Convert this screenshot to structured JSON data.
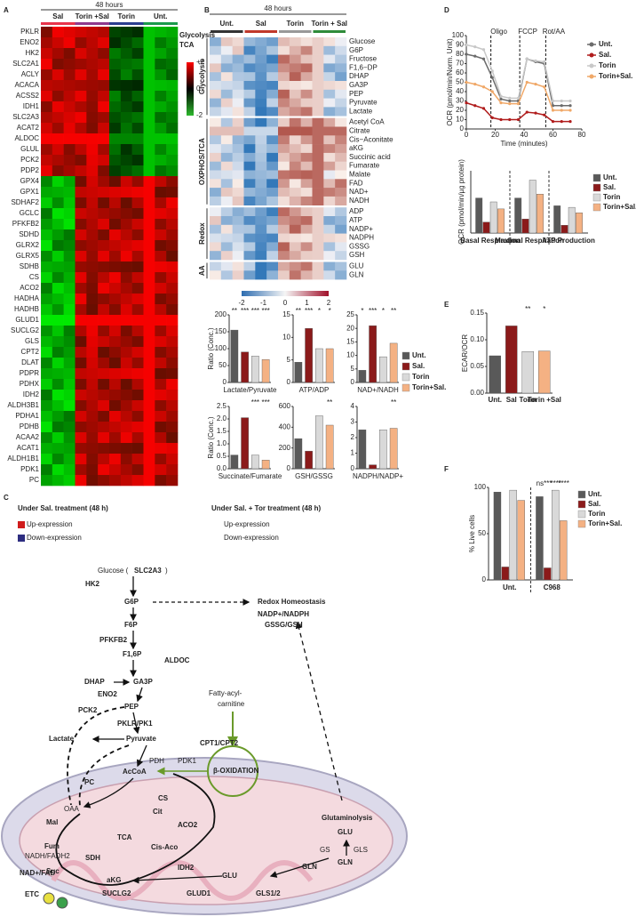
{
  "panel_labels": [
    "A",
    "B",
    "C",
    "D",
    "E",
    "F"
  ],
  "heatmap_a": {
    "header": "48 hours",
    "columns": [
      "Sal",
      "Torin +Sal",
      "Torin",
      "Unt."
    ],
    "column_colors": [
      "#e8334a",
      "#8e3a8e",
      "#2b3d8f",
      "#1a9a4a"
    ],
    "genes": [
      "PKLR",
      "ENO2",
      "HK2",
      "SLC2A1",
      "ACLY",
      "ACACA",
      "ACSS2",
      "IDH1",
      "SLC2A3",
      "ACAT2",
      "ALDOC",
      "GLUL",
      "PCK2",
      "PDP2",
      "GPX4",
      "GPX1",
      "SDHAF2",
      "GCLC",
      "PFKFB2",
      "SDHD",
      "GLRX2",
      "GLRX5",
      "SDHB",
      "CS",
      "ACO2",
      "HADHA",
      "HADHB",
      "GLUD1",
      "SUCLG2",
      "GLS",
      "CPT2",
      "DLAT",
      "PDPR",
      "PDHX",
      "IDH2",
      "ALDH3B1",
      "PDHA1",
      "PDHB",
      "ACAA2",
      "ACAT1",
      "ALDH1B1",
      "PDK1",
      "PC"
    ],
    "gene_colors": [
      "#2323c8",
      "#2323c8",
      "#2323c8",
      "#cc33cc",
      "#111",
      "#111",
      "#111",
      "#cc33cc",
      "#2323c8",
      "#111",
      "#2323c8",
      "#111",
      "#cc33cc",
      "#cc33cc",
      "#111",
      "#111",
      "#cc33cc",
      "#111",
      "#2323c8",
      "#cc33cc",
      "#111",
      "#111",
      "#cc33cc",
      "#cc33cc",
      "#cc33cc",
      "#cc33cc",
      "#cc33cc",
      "#cc33cc",
      "#cc33cc",
      "#cc33cc",
      "#cc33cc",
      "#111",
      "#cc33cc",
      "#cc33cc",
      "#cc33cc",
      "#111",
      "#cc33cc",
      "#cc33cc",
      "#cc33cc",
      "#cc33cc",
      "#111",
      "#cc33cc",
      "#cc33cc"
    ],
    "legend": [
      {
        "label": "Glycolysis",
        "color": "#2323c8"
      },
      {
        "label": "TCA",
        "color": "#cc33cc"
      }
    ],
    "scale_ticks": [
      {
        "value": 2,
        "label": "+2"
      },
      0,
      -2
    ]
  },
  "heatmap_b": {
    "header": "48 hours",
    "groups": [
      "Unt.",
      "Sal",
      "Torin",
      "Torin + Sal"
    ],
    "group_colors": [
      "#333333",
      "#c0392b",
      "#999999",
      "#2e8b3a"
    ],
    "pathways": [
      {
        "name": "Glycolysis",
        "metabolites": [
          "Glucose",
          "G6P",
          "Fructose",
          "F1,6−DP",
          "DHAP",
          "GA3P",
          "PEP",
          "Pyruvate",
          "Lactate"
        ]
      },
      {
        "name": "OXPHOS/TCA",
        "metabolites": [
          "Acetyl CoA",
          "Citrate",
          "Cis−Aconitate",
          "aKG",
          "Succinic acid",
          "Fumarate",
          "Malate",
          "FAD",
          "NAD+",
          "NADH"
        ]
      },
      {
        "name": "Redox",
        "metabolites": [
          "ADP",
          "ATP",
          "NADP+",
          "NADPH",
          "GSSG",
          "GSH"
        ]
      },
      {
        "name": "AA",
        "metabolites": [
          "GLU",
          "GLN"
        ]
      }
    ],
    "scale_ticks": [
      -2,
      -1,
      0,
      1,
      2
    ]
  },
  "ratio_legend": [
    {
      "name": "Unt.",
      "color": "#595959"
    },
    {
      "name": "Sal.",
      "color": "#8b1a1a"
    },
    {
      "name": "Torin",
      "color": "#d9d9d9"
    },
    {
      "name": "Torin+Sal.",
      "color": "#f4b183"
    }
  ],
  "chart_data": [
    {
      "type": "bar",
      "ylabel": "Ratio (Conc.)",
      "xlabel": "Lactate/Pyruvate",
      "values": [
        155,
        90,
        78,
        68
      ],
      "colors": [
        "#595959",
        "#8b1a1a",
        "#d9d9d9",
        "#f4b183"
      ],
      "ylim": [
        0,
        200
      ],
      "yticks": [
        0,
        50,
        100,
        150,
        200
      ],
      "annotations": [
        "**",
        "***",
        "***",
        "***"
      ]
    },
    {
      "type": "bar",
      "xlabel": "ATP/ADP",
      "values": [
        4.5,
        12,
        7.5,
        7.5
      ],
      "colors": [
        "#595959",
        "#8b1a1a",
        "#d9d9d9",
        "#f4b183"
      ],
      "ylim": [
        0,
        15
      ],
      "yticks": [
        0,
        5,
        10,
        15
      ],
      "annotations": [
        "**",
        "***",
        "*",
        "*"
      ]
    },
    {
      "type": "bar",
      "xlabel": "NAD+/NADH",
      "values": [
        4.5,
        21,
        9.5,
        14.5
      ],
      "colors": [
        "#595959",
        "#8b1a1a",
        "#d9d9d9",
        "#f4b183"
      ],
      "ylim": [
        0,
        25
      ],
      "yticks": [
        0,
        5,
        10,
        15,
        20,
        25
      ],
      "annotations": [
        "*",
        "***",
        "*",
        "**"
      ]
    },
    {
      "type": "bar",
      "ylabel": "Ratio (Conc.)",
      "xlabel": "Succinate/Fumarate",
      "values": [
        0.55,
        2.05,
        0.55,
        0.35
      ],
      "colors": [
        "#595959",
        "#8b1a1a",
        "#d9d9d9",
        "#f4b183"
      ],
      "ylim": [
        0,
        2.5
      ],
      "yticks": [
        {
          "value": 0,
          "label": "0.0"
        },
        0.5,
        {
          "value": 1,
          "label": "1.0"
        },
        1.5,
        {
          "value": 2,
          "label": "2.0"
        },
        2.5
      ],
      "annotations": [
        "***",
        "***"
      ]
    },
    {
      "type": "bar",
      "xlabel": "GSH/GSSG",
      "values": [
        290,
        170,
        510,
        420
      ],
      "colors": [
        "#595959",
        "#8b1a1a",
        "#d9d9d9",
        "#f4b183"
      ],
      "ylim": [
        0,
        600
      ],
      "yticks": [
        0,
        200,
        400,
        600
      ],
      "annotations": [
        "**"
      ]
    },
    {
      "type": "bar",
      "xlabel": "NADPH/NADP+",
      "values": [
        2.5,
        0.25,
        2.5,
        2.6
      ],
      "colors": [
        "#595959",
        "#8b1a1a",
        "#d9d9d9",
        "#f4b183"
      ],
      "ylim": [
        0,
        4
      ],
      "yticks": [
        0,
        1,
        2,
        3,
        4
      ],
      "annotations": [
        "**"
      ]
    },
    {
      "type": "line",
      "xlabel": "Time (minutes)",
      "ylabel": "OCR (pmol/min/Norm. Unit)",
      "x": [
        0,
        6,
        12,
        18,
        24,
        30,
        36,
        42,
        48,
        54,
        60,
        66,
        72
      ],
      "xlim": [
        0,
        80
      ],
      "xticks": [
        0,
        20,
        40,
        60,
        80
      ],
      "ylim": [
        0,
        100
      ],
      "yticks": [
        0,
        10,
        20,
        30,
        40,
        50,
        60,
        70,
        80,
        90,
        100
      ],
      "injections": [
        {
          "label": "Oligo",
          "x": 17
        },
        {
          "label": "FCCP",
          "x": 37
        },
        {
          "label": "Rot/AA",
          "x": 55
        }
      ],
      "series": [
        {
          "name": "Unt.",
          "color": "#6b6b6b",
          "values": [
            80,
            78,
            75,
            55,
            32,
            30,
            30,
            75,
            72,
            70,
            25,
            25,
            25
          ]
        },
        {
          "name": "Sal.",
          "color": "#b01c1c",
          "values": [
            28,
            25,
            22,
            12,
            10,
            10,
            10,
            18,
            17,
            15,
            8,
            8,
            8
          ]
        },
        {
          "name": "Torin",
          "color": "#c8c8c8",
          "values": [
            90,
            88,
            85,
            62,
            35,
            33,
            33,
            75,
            73,
            72,
            30,
            30,
            30
          ]
        },
        {
          "name": "Torin+Sal.",
          "color": "#f0a868",
          "values": [
            50,
            48,
            45,
            40,
            28,
            27,
            27,
            50,
            48,
            45,
            20,
            20,
            20
          ]
        }
      ]
    },
    {
      "type": "grouped_bar",
      "ylabel": "OCR (pmol/min/µg protein)",
      "categories": [
        "Basal Respiration",
        "Maximal Respiration",
        "ATP Production"
      ],
      "ylim": [
        0,
        80
      ],
      "series": [
        {
          "name": "Unt.",
          "color": "#595959",
          "values": [
            45,
            45,
            35
          ]
        },
        {
          "name": "Sal.",
          "color": "#8b1a1a",
          "values": [
            14,
            18,
            10
          ]
        },
        {
          "name": "Torin",
          "color": "#d9d9d9",
          "values": [
            40,
            68,
            33
          ]
        },
        {
          "name": "Torin+Sal.",
          "color": "#f4b183",
          "values": [
            31,
            50,
            26
          ]
        }
      ]
    },
    {
      "type": "bar",
      "ylabel": "ECAR/OCR",
      "categories": [
        "Unt.",
        "Sal",
        "Torin",
        "Torin +Sal"
      ],
      "values": [
        0.07,
        0.126,
        0.078,
        0.079
      ],
      "colors": [
        "#595959",
        "#8b1a1a",
        "#d9d9d9",
        "#f4b183"
      ],
      "ylim": [
        0,
        0.15
      ],
      "yticks": [
        {
          "value": 0,
          "label": "0.00"
        },
        0.05,
        {
          "value": 0.1,
          "label": "0.10"
        },
        0.15
      ],
      "annotations": [
        "**",
        "*"
      ]
    },
    {
      "type": "grouped_bar",
      "ylabel": "% Live cells",
      "categories": [
        "Unt.",
        "C968"
      ],
      "ylim": [
        0,
        100
      ],
      "yticks": [
        0,
        50,
        100
      ],
      "annotations": [
        "ns",
        "***",
        "****",
        "****"
      ],
      "series": [
        {
          "name": "Unt.",
          "color": "#595959",
          "values": [
            95,
            90
          ]
        },
        {
          "name": "Sal.",
          "color": "#8b1a1a",
          "values": [
            14,
            13
          ]
        },
        {
          "name": "Torin",
          "color": "#d9d9d9",
          "values": [
            97,
            97
          ]
        },
        {
          "name": "Torin+Sal.",
          "color": "#f4b183",
          "values": [
            86,
            64
          ]
        }
      ]
    }
  ],
  "diagram_c": {
    "labels": [
      {
        "text": "Under Sal. treatment (48 h)",
        "color": "#111"
      },
      {
        "text": "Under Sal. + Tor treatment (48 h)",
        "color": "#111"
      },
      {
        "text": "Up-expression",
        "color": "#d01c1c"
      },
      {
        "text": "Down-expression",
        "color": "#222"
      },
      {
        "text": "Up-expression",
        "color": "#d01c1c"
      },
      {
        "text": "Down-expression",
        "color": "#2323a0"
      },
      {
        "text": "Glucose (",
        "color": "#111"
      },
      {
        "text": "SLC2A3",
        "color": "#d01c1c"
      },
      {
        "text": ")",
        "color": "#111"
      },
      {
        "text": "HK2",
        "color": "#d01c1c"
      },
      {
        "text": "G6P",
        "color": "#2a5cc8"
      },
      {
        "text": "Redox Homeostasis",
        "color": "#2a5cc8"
      },
      {
        "text": "NADP+/NADPH",
        "color": "#d01c1c"
      },
      {
        "text": "GSSG/GSH",
        "color": "#d01c1c"
      },
      {
        "text": "F6P",
        "color": "#2a5cc8"
      },
      {
        "text": "PFKFB2",
        "color": "#d01c1c"
      },
      {
        "text": "F1,6P",
        "color": "#2a5cc8"
      },
      {
        "text": "ALDOC",
        "color": "#d01c1c"
      },
      {
        "text": "DHAP",
        "color": "#2a5cc8"
      },
      {
        "text": "GA3P",
        "color": "#2a5cc8"
      },
      {
        "text": "ENO2",
        "color": "#d01c1c"
      },
      {
        "text": "Fatty-acyl-",
        "color": "#888"
      },
      {
        "text": "carnitine",
        "color": "#888"
      },
      {
        "text": "PEP",
        "color": "#d01c1c"
      },
      {
        "text": "PCK2",
        "color": "#d01c1c"
      },
      {
        "text": "PKLR/PK1",
        "color": "#d01c1c"
      },
      {
        "text": "Lactate",
        "color": "#d01c1c"
      },
      {
        "text": "Pyruvate",
        "color": "#d01c1c"
      },
      {
        "text": "CPT1/CPT2",
        "color": "#d01c1c"
      },
      {
        "text": "PDH",
        "color": "#2a5cc8"
      },
      {
        "text": "PDK1",
        "color": "#2a5cc8"
      },
      {
        "text": "AcCoA",
        "color": "#2a5cc8"
      },
      {
        "text": "β-OXIDATION",
        "color": "#2a5cc8"
      },
      {
        "text": "PC",
        "color": "#2a5cc8"
      },
      {
        "text": "OAA",
        "color": "#888"
      },
      {
        "text": "CS",
        "color": "#2a5cc8"
      },
      {
        "text": "Cit",
        "color": "#2a5cc8"
      },
      {
        "text": "Mal",
        "color": "#2a5cc8"
      },
      {
        "text": "ACO2",
        "color": "#2a5cc8"
      },
      {
        "text": "TCA",
        "color": "#2a5cc8"
      },
      {
        "text": "Glutaminolysis",
        "color": "#2a5cc8"
      },
      {
        "text": "GLU",
        "color": "#2a5cc8"
      },
      {
        "text": "Fum",
        "color": "#2a5cc8"
      },
      {
        "text": "Cis-Aco",
        "color": "#2a5cc8"
      },
      {
        "text": "GS",
        "color": "#888"
      },
      {
        "text": "GLS",
        "color": "#888"
      },
      {
        "text": "NADH/FADH2",
        "color": "#2a5cc8"
      },
      {
        "text": "SDH",
        "color": "#2a5cc8"
      },
      {
        "text": "GLN",
        "color": "#2a5cc8"
      },
      {
        "text": "Suc",
        "color": "#2a5cc8"
      },
      {
        "text": "NAD+/FAD",
        "color": "#d01c1c"
      },
      {
        "text": "IDH2",
        "color": "#2a5cc8"
      },
      {
        "text": "aKG",
        "color": "#2a5cc8"
      },
      {
        "text": "GLU",
        "color": "#2a5cc8"
      },
      {
        "text": "GLN",
        "color": "#2a5cc8"
      },
      {
        "text": "SUCLG2",
        "color": "#2a5cc8"
      },
      {
        "text": "GLUD1",
        "color": "#2a5cc8"
      },
      {
        "text": "GLS1/2",
        "color": "#2a5cc8"
      },
      {
        "text": "ETC",
        "color": "#2a5cc8"
      }
    ]
  }
}
